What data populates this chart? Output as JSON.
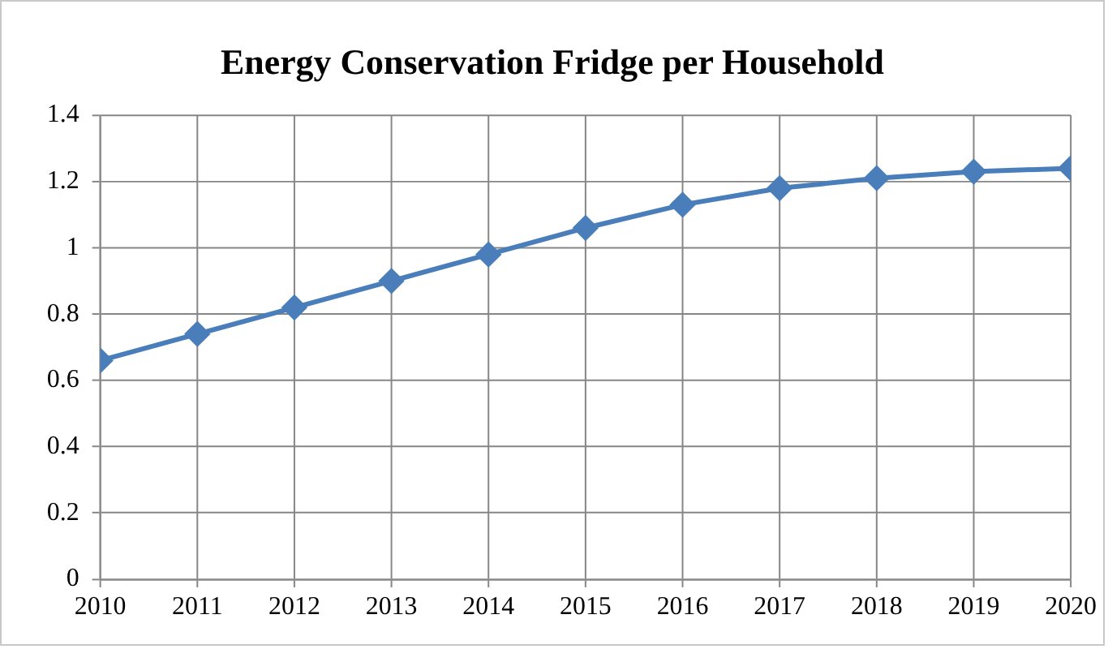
{
  "chart_data": {
    "type": "line",
    "title": "Energy Conservation Fridge per Household",
    "x": [
      2010,
      2011,
      2012,
      2013,
      2014,
      2015,
      2016,
      2017,
      2018,
      2019,
      2020
    ],
    "series": [
      {
        "color": "#4a7ebb",
        "values": [
          0.66,
          0.74,
          0.82,
          0.9,
          0.98,
          1.06,
          1.13,
          1.18,
          1.21,
          1.23,
          1.24
        ]
      }
    ],
    "xlim": [
      2010,
      2020
    ],
    "xticks": [
      2010,
      2011,
      2012,
      2013,
      2014,
      2015,
      2016,
      2017,
      2018,
      2019,
      2020
    ],
    "ylim": [
      0,
      1.4
    ],
    "yticks": [
      0,
      0.2,
      0.4,
      0.6,
      0.8,
      1,
      1.2,
      1.4
    ],
    "grid": true,
    "legend": false,
    "marker": "diamond",
    "line_style": "solid"
  }
}
